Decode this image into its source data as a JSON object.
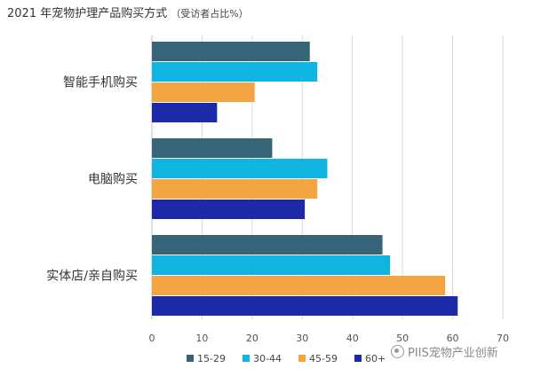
{
  "title": "2021 年宠物护理产品购买方式",
  "subtitle": "（受访者占比%）",
  "watermark": "PIIS宠物产业创新",
  "chart_data": {
    "type": "bar",
    "orientation": "horizontal",
    "categories": [
      "智能手机购买",
      "电脑购买",
      "实体店/亲自购买"
    ],
    "series": [
      {
        "name": "15-29",
        "color": "#366478",
        "values": [
          31.5,
          24,
          46
        ]
      },
      {
        "name": "30-44",
        "color": "#0fb4e0",
        "values": [
          33,
          35,
          47.5
        ]
      },
      {
        "name": "45-59",
        "color": "#f5a443",
        "values": [
          20.5,
          33,
          58.5
        ]
      },
      {
        "name": "60+",
        "color": "#1c2aa8",
        "values": [
          13,
          30.5,
          61
        ]
      }
    ],
    "x_ticks": [
      0,
      10,
      20,
      30,
      40,
      50,
      60,
      70
    ],
    "xlim": [
      0,
      70
    ],
    "grid": true,
    "legend_position": "bottom"
  }
}
